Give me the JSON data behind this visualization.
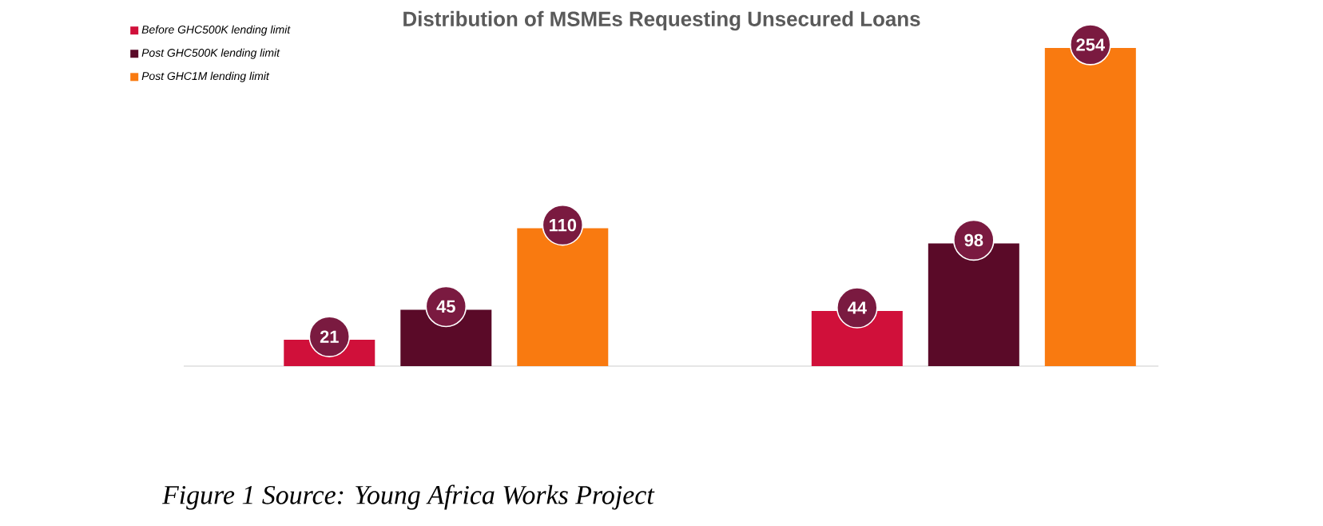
{
  "chart_data": {
    "type": "bar",
    "title": "Distribution of MSMEs Requesting Unsecured Loans",
    "categories": [
      null,
      null
    ],
    "series": [
      {
        "name": "Before GHC500K lending limit",
        "color": "#d0103a",
        "values": [
          21,
          44
        ]
      },
      {
        "name": "Post GHC500K lending limit",
        "color": "#5a0a28",
        "values": [
          45,
          98
        ]
      },
      {
        "name": "Post GHC1M lending limit",
        "color": "#f97a10",
        "values": [
          110,
          254
        ]
      }
    ],
    "data_labels": true,
    "legend": "top left",
    "annotations": [
      "Figure 1 Source: Young Africa Works Project"
    ]
  }
}
